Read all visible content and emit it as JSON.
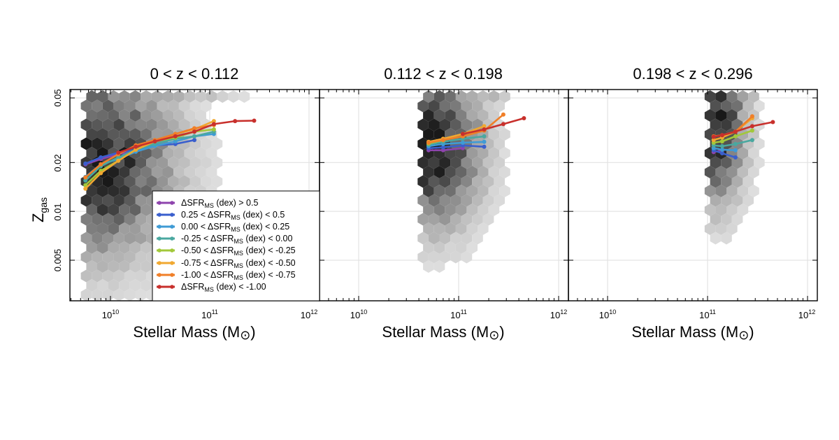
{
  "figure": {
    "ylabel_main": "Z",
    "ylabel_sub": "gas",
    "xlabel_main": "Stellar Mass (M",
    "xlabel_sun": "⊙",
    "xlabel_close": ")",
    "ytick_labels": [
      "0.05",
      "0.02",
      "0.01",
      "0.005"
    ],
    "xtick_labels": [
      {
        "base": "10",
        "exp": "10"
      },
      {
        "base": "10",
        "exp": "11"
      },
      {
        "base": "10",
        "exp": "12"
      }
    ]
  },
  "legend": {
    "entries": [
      {
        "pre": "ΔSFR",
        "sub": "MS",
        "post": " (dex) > 0.5"
      },
      {
        "pre": "0.25 < ΔSFR",
        "sub": "MS",
        "post": " (dex) < 0.5"
      },
      {
        "pre": "0.00 < ΔSFR",
        "sub": "MS",
        "post": " (dex) < 0.25"
      },
      {
        "pre": "-0.25 < ΔSFR",
        "sub": "MS",
        "post": " (dex) < 0.00"
      },
      {
        "pre": "-0.50 < ΔSFR",
        "sub": "MS",
        "post": " (dex) < -0.25"
      },
      {
        "pre": "-0.75 < ΔSFR",
        "sub": "MS",
        "post": " (dex) < -0.50"
      },
      {
        "pre": "-1.00 < ΔSFR",
        "sub": "MS",
        "post": " (dex) < -0.75"
      },
      {
        "pre": "ΔSFR",
        "sub": "MS",
        "post": " (dex) < -1.00"
      }
    ]
  },
  "chart_data": [
    {
      "type": "line",
      "title": "0 < z <  0.112",
      "xlabel": "Stellar Mass (M⊙)",
      "ylabel": "Zgas",
      "xscale": "log",
      "yscale": "log",
      "xlim": [
        4000000000.0,
        1500000000000.0
      ],
      "ylim": [
        0.0025,
        0.054
      ],
      "background": "hexbin density (grayscale)",
      "series": [
        {
          "name": "ΔSFRMS (dex) > 0.5",
          "color": "#8e44ad",
          "x": [
            5600000000.0,
            8000000000.0,
            12000000000.0,
            18000000000.0
          ],
          "y": [
            0.0195,
            0.021,
            0.0225,
            0.0235
          ]
        },
        {
          "name": "0.25 < ΔSFRMS (dex) < 0.5",
          "color": "#3a5fcd",
          "x": [
            5600000000.0,
            8000000000.0,
            12000000000.0,
            18000000000.0,
            28000000000.0,
            45000000000.0,
            70000000000.0
          ],
          "y": [
            0.0197,
            0.0215,
            0.023,
            0.024,
            0.0255,
            0.026,
            0.0275
          ]
        },
        {
          "name": "0.00 < ΔSFRMS (dex) < 0.25",
          "color": "#3f9bd5",
          "x": [
            5600000000.0,
            8000000000.0,
            12000000000.0,
            18000000000.0,
            28000000000.0,
            45000000000.0,
            70000000000.0,
            110000000000.0
          ],
          "y": [
            0.0163,
            0.0195,
            0.021,
            0.0233,
            0.0253,
            0.027,
            0.029,
            0.03
          ]
        },
        {
          "name": "-0.25 < ΔSFRMS (dex) < 0.00",
          "color": "#4aa8a0",
          "x": [
            5600000000.0,
            8000000000.0,
            12000000000.0,
            18000000000.0,
            28000000000.0,
            45000000000.0,
            70000000000.0,
            110000000000.0
          ],
          "y": [
            0.0155,
            0.019,
            0.0215,
            0.024,
            0.026,
            0.028,
            0.029,
            0.031
          ]
        },
        {
          "name": "-0.50 < ΔSFRMS (dex) < -0.25",
          "color": "#a2c83a",
          "x": [
            5600000000.0,
            8000000000.0,
            12000000000.0,
            18000000000.0,
            28000000000.0,
            45000000000.0,
            70000000000.0,
            110000000000.0
          ],
          "y": [
            0.0145,
            0.0178,
            0.0205,
            0.024,
            0.027,
            0.0285,
            0.031,
            0.032
          ]
        },
        {
          "name": "-0.75 < ΔSFRMS (dex) < -0.50",
          "color": "#f0a830",
          "x": [
            5600000000.0,
            8000000000.0,
            12000000000.0,
            18000000000.0,
            28000000000.0,
            45000000000.0,
            70000000000.0,
            110000000000.0
          ],
          "y": [
            0.0138,
            0.0172,
            0.0205,
            0.024,
            0.027,
            0.03,
            0.032,
            0.036
          ]
        },
        {
          "name": "-1.00 < ΔSFRMS (dex) < -0.75",
          "color": "#f07f28",
          "x": [
            5600000000.0,
            8000000000.0,
            12000000000.0,
            18000000000.0,
            28000000000.0,
            45000000000.0,
            70000000000.0,
            110000000000.0
          ],
          "y": [
            0.0162,
            0.0195,
            0.0225,
            0.0255,
            0.0275,
            0.03,
            0.0325,
            0.034
          ]
        },
        {
          "name": "ΔSFRMS (dex) < -1.00",
          "color": "#c8302c",
          "x": [
            12000000000.0,
            18000000000.0,
            28000000000.0,
            45000000000.0,
            70000000000.0,
            110000000000.0,
            180000000000.0,
            280000000000.0
          ],
          "y": [
            0.023,
            0.025,
            0.027,
            0.029,
            0.031,
            0.0345,
            0.036,
            0.0362
          ]
        }
      ]
    },
    {
      "type": "line",
      "title": "0.112 < z <  0.198",
      "xlabel": "Stellar Mass (M⊙)",
      "ylabel": "Zgas",
      "xscale": "log",
      "yscale": "log",
      "xlim": [
        4000000000.0,
        1500000000000.0
      ],
      "ylim": [
        0.0025,
        0.054
      ],
      "background": "hexbin density (grayscale)",
      "series": [
        {
          "name": "ΔSFRMS (dex) > 0.5",
          "color": "#8e44ad",
          "x": [
            50000000000.0,
            70000000000.0,
            110000000000.0
          ],
          "y": [
            0.0238,
            0.0238,
            0.0245
          ]
        },
        {
          "name": "0.25 < ΔSFRMS (dex) < 0.5",
          "color": "#3a5fcd",
          "x": [
            50000000000.0,
            70000000000.0,
            110000000000.0,
            180000000000.0
          ],
          "y": [
            0.0245,
            0.0248,
            0.0255,
            0.025
          ]
        },
        {
          "name": "0.00 < ΔSFRMS (dex) < 0.25",
          "color": "#3f9bd5",
          "x": [
            50000000000.0,
            70000000000.0,
            110000000000.0,
            180000000000.0
          ],
          "y": [
            0.0252,
            0.026,
            0.0265,
            0.0268
          ]
        },
        {
          "name": "-0.25 < ΔSFRMS (dex) < 0.00",
          "color": "#4aa8a0",
          "x": [
            50000000000.0,
            70000000000.0,
            110000000000.0,
            180000000000.0
          ],
          "y": [
            0.0258,
            0.0268,
            0.028,
            0.029
          ]
        },
        {
          "name": "-0.50 < ΔSFRMS (dex) < -0.25",
          "color": "#a2c83a",
          "x": [
            50000000000.0,
            70000000000.0,
            110000000000.0,
            180000000000.0
          ],
          "y": [
            0.0262,
            0.0275,
            0.029,
            0.0315
          ]
        },
        {
          "name": "-0.75 < ΔSFRMS (dex) < -0.50",
          "color": "#f0a830",
          "x": [
            50000000000.0,
            70000000000.0,
            110000000000.0,
            180000000000.0
          ],
          "y": [
            0.0268,
            0.028,
            0.03,
            0.0335
          ]
        },
        {
          "name": "-1.00 < ΔSFRMS (dex) < -0.75",
          "color": "#f07f28",
          "x": [
            50000000000.0,
            70000000000.0,
            110000000000.0,
            180000000000.0,
            280000000000.0
          ],
          "y": [
            0.0265,
            0.0275,
            0.029,
            0.0315,
            0.0395
          ]
        },
        {
          "name": "ΔSFRMS (dex) < -1.00",
          "color": "#c8302c",
          "x": [
            110000000000.0,
            180000000000.0,
            280000000000.0,
            450000000000.0
          ],
          "y": [
            0.03,
            0.032,
            0.0345,
            0.0375
          ]
        }
      ]
    },
    {
      "type": "line",
      "title": "0.198 < z <  0.296",
      "xlabel": "Stellar Mass (M⊙)",
      "ylabel": "Zgas",
      "xscale": "log",
      "yscale": "log",
      "xlim": [
        4000000000.0,
        1500000000000.0
      ],
      "ylim": [
        0.0025,
        0.054
      ],
      "background": "hexbin density (grayscale)",
      "series": [
        {
          "name": "ΔSFRMS (dex) > 0.5",
          "color": "#8e44ad",
          "x": [
            115000000000.0,
            140000000000.0
          ],
          "y": [
            0.0232,
            0.0238
          ]
        },
        {
          "name": "0.25 < ΔSFRMS (dex) < 0.5",
          "color": "#3a5fcd",
          "x": [
            115000000000.0,
            140000000000.0,
            190000000000.0
          ],
          "y": [
            0.0238,
            0.0228,
            0.0215
          ]
        },
        {
          "name": "0.00 < ΔSFRMS (dex) < 0.25",
          "color": "#3f9bd5",
          "x": [
            115000000000.0,
            140000000000.0,
            190000000000.0
          ],
          "y": [
            0.0245,
            0.024,
            0.0238
          ]
        },
        {
          "name": "-0.25 < ΔSFRMS (dex) < 0.00",
          "color": "#4aa8a0",
          "x": [
            115000000000.0,
            140000000000.0,
            190000000000.0,
            280000000000.0
          ],
          "y": [
            0.0255,
            0.0252,
            0.026,
            0.0275
          ]
        },
        {
          "name": "-0.50 < ΔSFRMS (dex) < -0.25",
          "color": "#a2c83a",
          "x": [
            115000000000.0,
            140000000000.0,
            190000000000.0,
            280000000000.0
          ],
          "y": [
            0.0265,
            0.027,
            0.029,
            0.0315
          ]
        },
        {
          "name": "-0.75 < ΔSFRMS (dex) < -0.50",
          "color": "#f0a830",
          "x": [
            115000000000.0,
            140000000000.0,
            190000000000.0,
            280000000000.0
          ],
          "y": [
            0.0275,
            0.0285,
            0.031,
            0.0375
          ]
        },
        {
          "name": "-1.00 < ΔSFRMS (dex) < -0.75",
          "color": "#f07f28",
          "x": [
            115000000000.0,
            140000000000.0,
            190000000000.0,
            280000000000.0
          ],
          "y": [
            0.029,
            0.0295,
            0.031,
            0.0385
          ]
        },
        {
          "name": "ΔSFRMS (dex) < -1.00",
          "color": "#c8302c",
          "x": [
            115000000000.0,
            140000000000.0,
            190000000000.0,
            280000000000.0,
            450000000000.0
          ],
          "y": [
            0.0288,
            0.0295,
            0.031,
            0.0335,
            0.0355
          ]
        }
      ]
    }
  ]
}
